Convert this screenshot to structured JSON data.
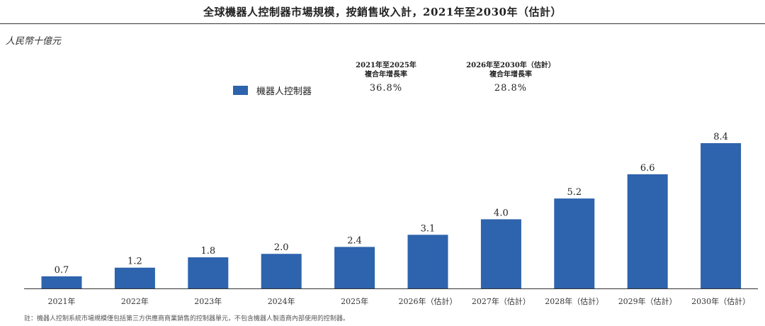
{
  "title": "全球機器人控制器市場規模，按銷售收入計，2021年至2030年（估計）",
  "unit_label": "人民幣十億元",
  "legend": {
    "label": "機器人控制器",
    "color": "#2e63ad"
  },
  "cagr": [
    {
      "period_line1": "2021年至2025年",
      "period_line2": "複合年增長率",
      "value": "36.8%"
    },
    {
      "period_line1": "2026年至2030年（估計）",
      "period_line2": "複合年增長率",
      "value": "28.8%"
    }
  ],
  "footnote": "註：機器人控制系統市場規模僅包括第三方供應商商業銷售的控制器單元，不包含機器人製造商內部使用的控制器。",
  "chart_data": {
    "type": "bar",
    "categories": [
      "2021年",
      "2022年",
      "2023年",
      "2024年",
      "2025年",
      "2026年（估計）",
      "2027年（估計）",
      "2028年（估計）",
      "2029年（估計）",
      "2030年（估計）"
    ],
    "series": [
      {
        "name": "機器人控制器",
        "values": [
          0.7,
          1.2,
          1.8,
          2.0,
          2.4,
          3.1,
          4.0,
          5.2,
          6.6,
          8.4
        ],
        "labels": [
          "0.7",
          "1.2",
          "1.8",
          "2.0",
          "2.4",
          "3.1",
          "4.0",
          "5.2",
          "6.6",
          "8.4"
        ]
      }
    ],
    "ylabel": "人民幣十億元",
    "ylim": [
      0,
      8.4
    ],
    "bar_color": "#2e63ad",
    "grid": false,
    "legend_position": "top-left"
  }
}
